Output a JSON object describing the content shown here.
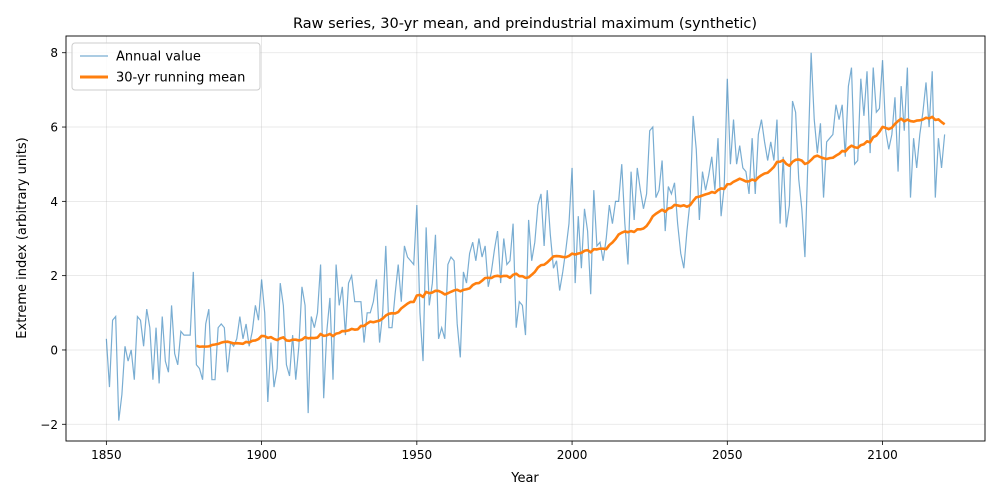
{
  "chart_data": {
    "type": "line",
    "title": "Raw series, 30-yr mean, and preindustrial maximum (synthetic)",
    "xlabel": "Year",
    "ylabel": "Extreme index (arbitrary units)",
    "xlim": [
      1837,
      2133
    ],
    "ylim": [
      -2.45,
      8.45
    ],
    "xticks": [
      1850,
      1900,
      1950,
      2000,
      2050,
      2100
    ],
    "yticks": [
      -2,
      0,
      2,
      4,
      6,
      8
    ],
    "grid": true,
    "legend_position": "top-left",
    "x_start": 1850,
    "x_step": 1,
    "running_window": 30,
    "series": [
      {
        "name": "Annual value",
        "color": "#1f77b4",
        "values": [
          0.3,
          -1.0,
          0.8,
          0.9,
          -1.9,
          -1.2,
          0.1,
          -0.3,
          0.0,
          -0.8,
          0.9,
          0.8,
          0.1,
          1.1,
          0.6,
          -0.8,
          0.6,
          -0.9,
          0.9,
          -0.3,
          -0.6,
          1.2,
          -0.1,
          -0.4,
          0.5,
          0.4,
          0.4,
          0.4,
          2.1,
          -0.4,
          -0.5,
          -0.8,
          0.7,
          1.1,
          -0.8,
          -0.8,
          0.6,
          0.7,
          0.6,
          -0.6,
          0.2,
          0.1,
          0.3,
          0.9,
          0.3,
          0.7,
          0.1,
          0.5,
          1.2,
          0.8,
          1.9,
          1.0,
          -1.4,
          0.2,
          -1.0,
          -0.5,
          1.8,
          1.2,
          -0.4,
          -0.7,
          0.4,
          -0.8,
          0.1,
          1.7,
          1.2,
          -1.7,
          0.9,
          0.6,
          1.0,
          2.3,
          -1.3,
          0.5,
          1.4,
          -0.8,
          2.3,
          1.2,
          1.7,
          0.4,
          1.8,
          2.0,
          1.3,
          1.3,
          1.3,
          0.2,
          1.0,
          1.0,
          1.3,
          1.9,
          0.2,
          1.0,
          2.8,
          0.6,
          0.6,
          1.5,
          2.3,
          1.3,
          2.8,
          2.5,
          2.4,
          2.3,
          3.9,
          1.0,
          -0.3,
          3.3,
          1.2,
          1.8,
          3.1,
          0.3,
          0.6,
          0.3,
          2.3,
          2.5,
          2.4,
          0.7,
          -0.2,
          2.1,
          1.8,
          2.6,
          2.9,
          2.4,
          3.0,
          2.5,
          2.8,
          1.7,
          2.1,
          2.7,
          3.2,
          1.8,
          3.0,
          2.3,
          2.4,
          3.4,
          0.6,
          1.3,
          1.2,
          0.4,
          3.5,
          2.4,
          2.9,
          3.9,
          4.2,
          2.8,
          4.3,
          3.1,
          2.2,
          2.4,
          1.6,
          2.1,
          2.7,
          3.4,
          4.9,
          1.8,
          3.6,
          2.2,
          3.8,
          3.2,
          1.5,
          4.3,
          2.8,
          2.9,
          2.4,
          3.0,
          3.9,
          3.4,
          4.0,
          4.0,
          5.0,
          3.4,
          2.3,
          4.8,
          3.5,
          4.9,
          4.3,
          3.8,
          4.2,
          5.9,
          6.0,
          4.1,
          4.3,
          5.1,
          3.2,
          4.4,
          4.2,
          4.5,
          3.4,
          2.6,
          2.2,
          3.2,
          4.0,
          6.3,
          5.4,
          3.5,
          4.8,
          4.3,
          4.7,
          5.2,
          4.3,
          5.7,
          3.6,
          4.4,
          7.3,
          5.0,
          6.2,
          5.0,
          5.5,
          4.9,
          4.8,
          4.2,
          5.7,
          4.2,
          5.8,
          6.2,
          5.6,
          5.1,
          5.6,
          5.1,
          6.2,
          3.4,
          5.2,
          3.3,
          3.9,
          6.7,
          6.4,
          4.6,
          3.8,
          2.5,
          5.2,
          8.0,
          6.2,
          5.3,
          6.1,
          4.1,
          5.6,
          5.7,
          5.8,
          6.6,
          6.2,
          6.6,
          5.2,
          7.1,
          7.6,
          5.0,
          5.1,
          7.3,
          6.3,
          7.5,
          5.3,
          7.6,
          6.4,
          6.5,
          7.8,
          5.9,
          5.4,
          5.8,
          6.8,
          4.8,
          7.1,
          5.9,
          7.6,
          4.1,
          5.7,
          4.9,
          5.8,
          6.4,
          7.2,
          6.0,
          7.5,
          4.1,
          5.7,
          4.9,
          5.8
        ]
      },
      {
        "name": "30-yr running mean",
        "color": "#ff7f0e"
      }
    ]
  }
}
